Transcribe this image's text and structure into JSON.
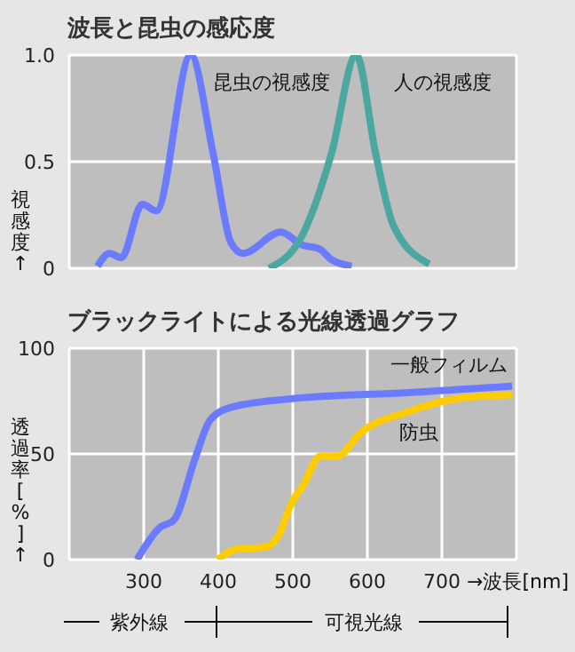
{
  "chart_data": [
    {
      "type": "line",
      "title": "波長と昆虫の感応度",
      "ylabel": "視感度↑",
      "xlim": [
        200,
        800
      ],
      "xticks": [
        300,
        400,
        500,
        600,
        700
      ],
      "ylim": [
        0,
        1
      ],
      "yticks": [
        0,
        0.5,
        {
          "value": 1,
          "label": "1.0"
        }
      ],
      "tick_labels": "y",
      "grid": true,
      "series": [
        {
          "name": "昆虫の視感度",
          "color": "#6b7bff",
          "x": [
            238,
            254,
            270,
            298,
            317,
            363,
            393,
            417,
            433,
            484,
            512,
            536,
            552,
            579
          ],
          "values": [
            0.01,
            0.07,
            0.05,
            0.3,
            0.27,
            1.0,
            0.54,
            0.12,
            0.07,
            0.17,
            0.11,
            0.09,
            0.04,
            0.01
          ]
        },
        {
          "name": "人の視感度",
          "color": "#4aa8a0",
          "x": [
            468,
            512,
            552,
            585,
            611,
            635,
            683
          ],
          "values": [
            0,
            0.15,
            0.54,
            1.0,
            0.54,
            0.2,
            0.02
          ]
        }
      ]
    },
    {
      "type": "line",
      "title": "ブラックライトによる光線透過グラフ",
      "xlabel": "→波長[nm]",
      "ylabel": "透過率[%]↑",
      "xlim": [
        200,
        800
      ],
      "xticks": [
        300,
        400,
        500,
        600,
        700
      ],
      "ylim": [
        0,
        100
      ],
      "yticks": [
        0,
        50,
        100
      ],
      "grid": true,
      "annotations": [
        "紫外線",
        "可視光線"
      ],
      "series": [
        {
          "name": "一般フィルム",
          "color": "#6b7bff",
          "x": [
            291,
            321,
            341,
            369,
            389,
            417,
            496,
            655,
            794
          ],
          "values": [
            0,
            15,
            19,
            48,
            66,
            72,
            76,
            79,
            82
          ]
        },
        {
          "name": "防虫",
          "color": "#ffcc00",
          "x": [
            399,
            425,
            464,
            480,
            500,
            512,
            537,
            560,
            591,
            655,
            718,
            794
          ],
          "values": [
            0,
            5,
            6,
            11,
            28,
            34,
            49,
            49,
            60,
            70,
            76,
            78
          ]
        }
      ]
    }
  ]
}
